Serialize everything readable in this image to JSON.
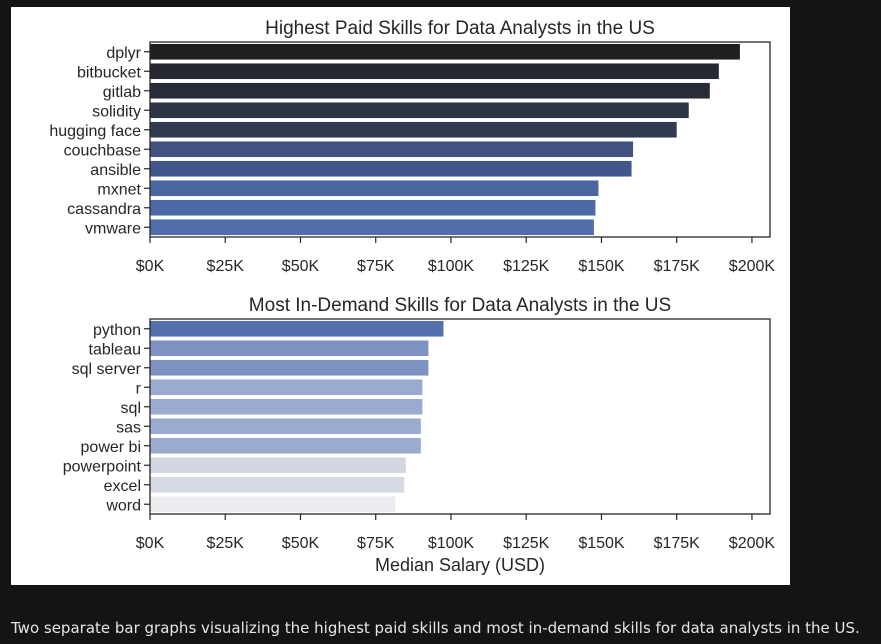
{
  "caption": "Two separate bar graphs visualizing the highest paid skills and most in-demand skills for data analysts in the US.",
  "chart_data": [
    {
      "type": "bar",
      "orientation": "horizontal",
      "title": "Highest Paid Skills for Data Analysts in the US",
      "xlabel": "",
      "ylabel": "",
      "categories": [
        "dplyr",
        "bitbucket",
        "gitlab",
        "solidity",
        "hugging face",
        "couchbase",
        "ansible",
        "mxnet",
        "cassandra",
        "vmware"
      ],
      "values": [
        196000,
        189000,
        186000,
        179000,
        175000,
        160500,
        160000,
        149000,
        148000,
        147500
      ],
      "xlim": [
        0,
        206000
      ],
      "xticks": [
        0,
        25000,
        50000,
        75000,
        100000,
        125000,
        150000,
        175000,
        200000
      ],
      "xtick_labels": [
        "$0K",
        "$25K",
        "$50K",
        "$75K",
        "$100K",
        "$125K",
        "$150K",
        "$175K",
        "$200K"
      ],
      "colors": [
        "#1f1f22",
        "#262931",
        "#282c38",
        "#2c3344",
        "#303a50",
        "#3f5280",
        "#41568a",
        "#4b67a1",
        "#4d6aa6",
        "#506ea9"
      ],
      "grid": false,
      "legend": "none"
    },
    {
      "type": "bar",
      "orientation": "horizontal",
      "title": "Most In-Demand Skills for Data Analysts in the US",
      "xlabel": "Median Salary (USD)",
      "ylabel": "",
      "categories": [
        "python",
        "tableau",
        "sql server",
        "r",
        "sql",
        "sas",
        "power bi",
        "powerpoint",
        "excel",
        "word"
      ],
      "values": [
        97500,
        92500,
        92500,
        90500,
        90500,
        90000,
        90000,
        85000,
        84500,
        81500
      ],
      "xlim": [
        0,
        206000
      ],
      "xticks": [
        0,
        25000,
        50000,
        75000,
        100000,
        125000,
        150000,
        175000,
        200000
      ],
      "xtick_labels": [
        "$0K",
        "$25K",
        "$50K",
        "$75K",
        "$100K",
        "$125K",
        "$150K",
        "$175K",
        "$200K"
      ],
      "colors": [
        "#5470ad",
        "#7d92c1",
        "#7d92c1",
        "#9aabcf",
        "#9aabcf",
        "#9aabcf",
        "#9aabcf",
        "#d2d6e3",
        "#d6dae5",
        "#ebecef"
      ],
      "grid": false,
      "legend": "none"
    }
  ]
}
